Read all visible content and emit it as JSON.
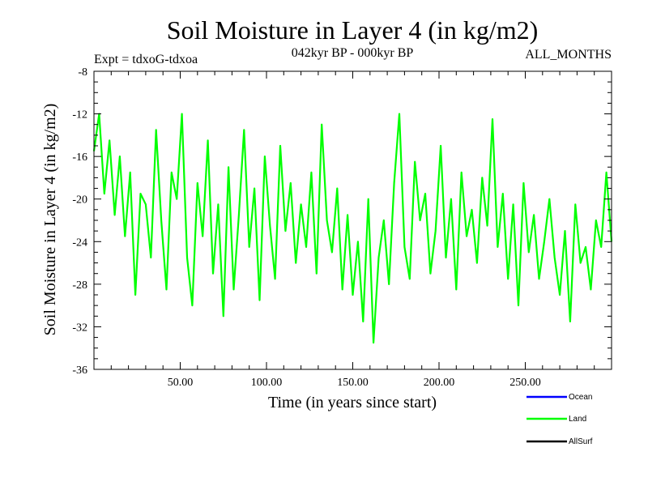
{
  "chart_data": {
    "type": "line",
    "title": "Soil Moisture in Layer 4 (in kg/m2)",
    "subtitle_left": "Expt = tdxoG-tdxoa",
    "subtitle_center": "042kyr BP - 000kyr BP",
    "subtitle_right": "ALL_MONTHS",
    "xlabel": "Time (in years since start)",
    "ylabel": "Soil Moisture in Layer 4 (in kg/m2)",
    "xlim": [
      0,
      300
    ],
    "ylim": [
      -36,
      -8
    ],
    "xticks": [
      50,
      100,
      150,
      200,
      250
    ],
    "xtick_labels": [
      "50.00",
      "100.00",
      "150.00",
      "200.00",
      "250.00"
    ],
    "yticks": [
      -8,
      -12,
      -16,
      -20,
      -24,
      -28,
      -32,
      -36
    ],
    "ytick_labels": [
      "-8",
      "-12",
      "-16",
      "-20",
      "-24",
      "-28",
      "-32",
      "-36"
    ],
    "legend": [
      {
        "name": "Ocean",
        "color": "#0000ff"
      },
      {
        "name": "Land",
        "color": "#00ff00"
      },
      {
        "name": "AllSurf",
        "color": "#000000"
      }
    ],
    "legend_position": "bottom-right",
    "series": [
      {
        "name": "Land",
        "color": "#00ff00",
        "x": [
          0,
          3,
          6,
          9,
          12,
          15,
          18,
          21,
          24,
          27,
          30,
          33,
          36,
          39,
          42,
          45,
          48,
          51,
          54,
          57,
          60,
          63,
          66,
          69,
          72,
          75,
          78,
          81,
          84,
          87,
          90,
          93,
          96,
          99,
          102,
          105,
          108,
          111,
          114,
          117,
          120,
          123,
          126,
          129,
          132,
          135,
          138,
          141,
          144,
          147,
          150,
          153,
          156,
          159,
          162,
          165,
          168,
          171,
          174,
          177,
          180,
          183,
          186,
          189,
          192,
          195,
          198,
          201,
          204,
          207,
          210,
          213,
          216,
          219,
          222,
          225,
          228,
          231,
          234,
          237,
          240,
          243,
          246,
          249,
          252,
          255,
          258,
          261,
          264,
          267,
          270,
          273,
          276,
          279,
          282,
          285,
          288,
          291,
          294,
          297,
          300
        ],
        "values": [
          -15.5,
          -12.0,
          -19.5,
          -14.5,
          -21.5,
          -16.0,
          -23.5,
          -17.5,
          -29.0,
          -19.5,
          -20.5,
          -25.5,
          -13.5,
          -22.0,
          -28.5,
          -17.5,
          -20.0,
          -12.0,
          -25.5,
          -30.0,
          -18.5,
          -23.5,
          -14.5,
          -27.0,
          -20.5,
          -31.0,
          -17.0,
          -28.5,
          -21.5,
          -13.5,
          -24.5,
          -19.0,
          -29.5,
          -16.0,
          -22.5,
          -27.5,
          -15.0,
          -23.0,
          -18.5,
          -26.0,
          -20.5,
          -24.5,
          -17.5,
          -27.0,
          -13.0,
          -22.0,
          -25.0,
          -19.0,
          -28.5,
          -21.5,
          -29.0,
          -24.0,
          -31.5,
          -20.0,
          -33.5,
          -25.5,
          -22.0,
          -28.0,
          -18.5,
          -12.0,
          -24.5,
          -27.5,
          -16.5,
          -22.0,
          -19.5,
          -27.0,
          -23.0,
          -15.0,
          -25.5,
          -20.0,
          -28.5,
          -17.5,
          -23.5,
          -21.0,
          -26.0,
          -18.0,
          -22.5,
          -12.5,
          -24.5,
          -19.5,
          -27.5,
          -20.5,
          -30.0,
          -18.5,
          -25.0,
          -21.5,
          -27.5,
          -24.0,
          -20.0,
          -25.5,
          -29.0,
          -23.0,
          -31.5,
          -20.5,
          -26.0,
          -24.5,
          -28.5,
          -22.0,
          -24.5,
          -17.5,
          -24.0
        ]
      }
    ]
  }
}
